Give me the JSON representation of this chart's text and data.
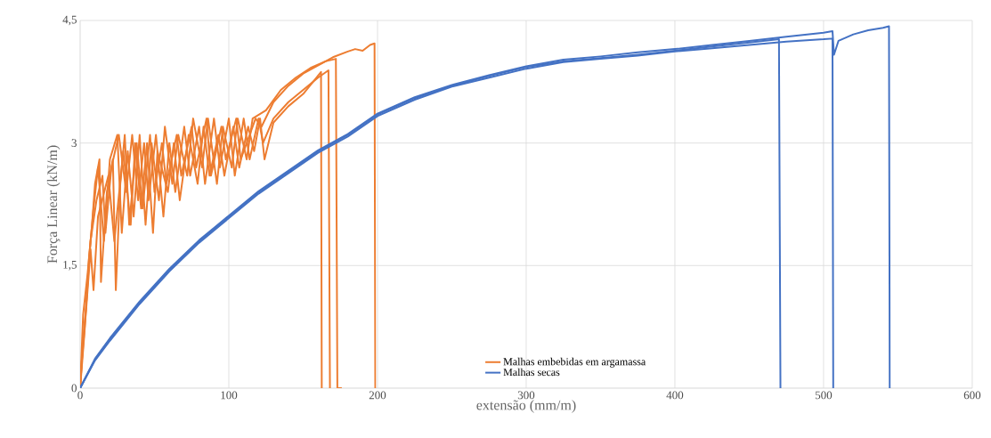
{
  "chart_data": {
    "type": "line",
    "xlabel": "extensão (mm/m)",
    "ylabel": "Força Linear (kN/m)",
    "xlim": [
      0,
      600
    ],
    "ylim": [
      0,
      4.5
    ],
    "xticks": [
      0,
      100,
      200,
      300,
      400,
      500,
      600
    ],
    "yticks": [
      0,
      {
        "value": 1.5,
        "label": "1,5"
      },
      3,
      {
        "value": 4.5,
        "label": "4,5"
      }
    ],
    "grid": true,
    "legend": "bottom",
    "marker": "none",
    "line_style": "solid",
    "series": [
      {
        "name": "Malhas embebidas em argamassa",
        "color": "#ed7d31",
        "x": [
          0,
          2,
          5,
          8,
          10,
          13,
          14,
          18,
          22,
          24,
          27,
          30,
          33,
          38,
          42,
          47,
          50,
          55,
          58,
          65,
          68,
          75,
          78,
          85,
          88,
          95,
          98,
          105,
          108,
          118,
          122,
          130,
          140,
          150,
          160,
          170,
          180,
          185,
          190,
          195,
          198,
          198.5
        ],
        "values": [
          0,
          0.9,
          1.4,
          2.0,
          2.5,
          2.8,
          1.3,
          2.4,
          2.8,
          1.2,
          2.5,
          3.1,
          2.0,
          3.0,
          2.2,
          3.1,
          2.4,
          3.0,
          2.5,
          3.1,
          2.6,
          3.2,
          2.7,
          3.3,
          2.6,
          3.2,
          2.8,
          3.3,
          2.8,
          3.3,
          3.2,
          3.5,
          3.7,
          3.85,
          3.95,
          4.05,
          4.12,
          4.15,
          4.13,
          4.2,
          4.22,
          0
        ]
      },
      {
        "color": "#ed7d31",
        "x": [
          0,
          3,
          6,
          9,
          12,
          16,
          20,
          25,
          28,
          32,
          36,
          40,
          44,
          48,
          53,
          57,
          62,
          66,
          72,
          76,
          82,
          86,
          92,
          96,
          102,
          106,
          112,
          116,
          125,
          135,
          145,
          155,
          165,
          172,
          173,
          176
        ],
        "values": [
          0,
          0.7,
          1.6,
          2.2,
          2.7,
          1.8,
          2.8,
          3.1,
          1.9,
          2.9,
          2.1,
          3.1,
          2.0,
          3.0,
          2.3,
          3.2,
          2.5,
          3.1,
          2.6,
          3.3,
          2.7,
          3.3,
          2.5,
          3.2,
          2.7,
          3.3,
          2.8,
          3.3,
          3.4,
          3.65,
          3.8,
          3.92,
          4.0,
          4.03,
          0,
          0
        ]
      },
      {
        "color": "#ed7d31",
        "x": [
          0,
          2,
          4,
          7,
          11,
          15,
          17,
          21,
          26,
          31,
          35,
          39,
          43,
          46,
          51,
          56,
          60,
          64,
          70,
          74,
          80,
          84,
          90,
          94,
          100,
          104,
          110,
          114,
          120,
          123,
          130,
          140,
          150,
          160,
          167,
          168
        ],
        "values": [
          0,
          0.6,
          1.0,
          1.8,
          2.3,
          2.6,
          1.9,
          2.7,
          3.1,
          2.4,
          3.1,
          2.3,
          3.0,
          2.3,
          3.1,
          2.1,
          3.0,
          2.4,
          3.2,
          2.6,
          3.2,
          2.5,
          3.3,
          2.7,
          3.3,
          2.6,
          3.3,
          2.8,
          3.3,
          3.0,
          3.3,
          3.5,
          3.65,
          3.8,
          3.89,
          0
        ]
      },
      {
        "color": "#ed7d31",
        "x": [
          0,
          1,
          4,
          7,
          9,
          12,
          19,
          23,
          29,
          34,
          37,
          41,
          45,
          49,
          52,
          59,
          63,
          67,
          73,
          79,
          83,
          87,
          93,
          97,
          103,
          107,
          113,
          117,
          121,
          124,
          130,
          140,
          150,
          158,
          162,
          162.5
        ],
        "values": [
          0,
          0.3,
          0.95,
          1.7,
          1.2,
          2.1,
          2.6,
          1.8,
          2.9,
          2.0,
          3.0,
          2.2,
          3.0,
          1.9,
          2.9,
          2.4,
          3.0,
          2.3,
          3.1,
          2.5,
          3.2,
          2.6,
          3.1,
          2.6,
          3.2,
          2.7,
          3.2,
          2.9,
          3.3,
          2.8,
          3.25,
          3.45,
          3.6,
          3.78,
          3.87,
          0
        ]
      },
      {
        "name": "Malhas secas",
        "color": "#4472c4",
        "x": [
          0,
          10,
          20,
          40,
          60,
          80,
          100,
          120,
          140,
          160,
          180,
          200,
          225,
          250,
          275,
          300,
          325,
          350,
          375,
          400,
          425,
          450,
          470,
          471
        ],
        "values": [
          0,
          0.35,
          0.6,
          1.05,
          1.45,
          1.8,
          2.1,
          2.4,
          2.65,
          2.9,
          3.1,
          3.35,
          3.55,
          3.7,
          3.82,
          3.93,
          4.0,
          4.04,
          4.08,
          4.13,
          4.18,
          4.23,
          4.27,
          0
        ]
      },
      {
        "color": "#4472c4",
        "x": [
          0,
          10,
          20,
          40,
          60,
          80,
          100,
          120,
          140,
          160,
          180,
          200,
          225,
          250,
          275,
          300,
          325,
          350,
          375,
          400,
          425,
          450,
          475,
          500,
          506,
          506.5
        ],
        "values": [
          0,
          0.34,
          0.58,
          1.03,
          1.43,
          1.78,
          2.08,
          2.38,
          2.63,
          2.88,
          3.08,
          3.33,
          3.53,
          3.69,
          3.8,
          3.91,
          3.99,
          4.03,
          4.07,
          4.12,
          4.16,
          4.2,
          4.24,
          4.27,
          4.28,
          0
        ]
      },
      {
        "color": "#4472c4",
        "x": [
          0,
          10,
          20,
          40,
          60,
          80,
          100,
          120,
          140,
          160,
          180,
          200,
          225,
          250,
          275,
          300,
          325,
          350,
          375,
          400,
          425,
          450,
          475,
          500,
          506,
          507,
          510,
          520,
          530,
          540,
          544,
          544.5
        ],
        "values": [
          0,
          0.36,
          0.61,
          1.06,
          1.46,
          1.81,
          2.11,
          2.41,
          2.66,
          2.91,
          3.11,
          3.36,
          3.56,
          3.71,
          3.83,
          3.94,
          4.02,
          4.06,
          4.11,
          4.15,
          4.2,
          4.25,
          4.3,
          4.35,
          4.37,
          4.08,
          4.25,
          4.33,
          4.38,
          4.41,
          4.43,
          0
        ]
      }
    ]
  }
}
